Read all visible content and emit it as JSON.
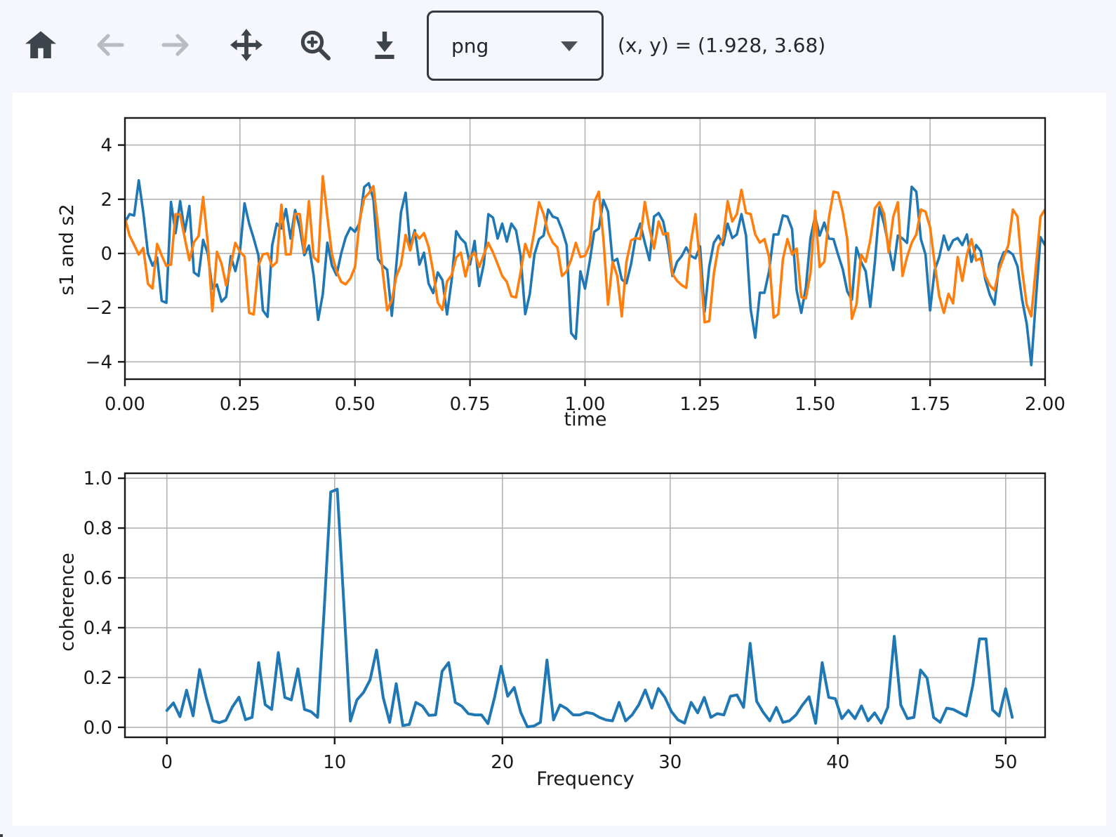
{
  "toolbar": {
    "buttons": [
      {
        "name": "home",
        "icon": "home-icon",
        "enabled": true
      },
      {
        "name": "back",
        "icon": "arrow-left-icon",
        "enabled": false
      },
      {
        "name": "forward",
        "icon": "arrow-right-icon",
        "enabled": false
      },
      {
        "name": "pan",
        "icon": "move-arrows-icon",
        "enabled": true
      },
      {
        "name": "zoom",
        "icon": "zoom-magnifier-icon",
        "enabled": true
      },
      {
        "name": "download",
        "icon": "download-icon",
        "enabled": true
      }
    ],
    "format_select": {
      "value": "png"
    },
    "cursor_readout": "(x, y) = (1.928, 3.68)"
  },
  "colors": {
    "page_background": "#f5f7fd",
    "figure_background": "#ffffff",
    "series_blue": "#1f77b4",
    "series_orange": "#ff7f0e",
    "grid": "#b3b3b3",
    "spine": "#1a1a1a",
    "icon_active": "#3e444c",
    "icon_disabled": "#b9bdc3"
  },
  "chart_data": [
    {
      "type": "line",
      "title": "",
      "xlabel": "time",
      "ylabel": "s1 and s2",
      "grid": true,
      "legend": "none",
      "xlim": [
        0,
        2
      ],
      "ylim": [
        -4.64,
        5.0
      ],
      "xticks": [
        0,
        0.25,
        0.5,
        0.75,
        1.0,
        1.25,
        1.5,
        1.75,
        2.0
      ],
      "xtick_labels": [
        "0.00",
        "0.25",
        "0.50",
        "0.75",
        "1.00",
        "1.25",
        "1.50",
        "1.75",
        "2.00"
      ],
      "yticks": [
        4,
        2,
        0,
        -2,
        -4
      ],
      "ytick_labels": [
        "4",
        "2",
        "0",
        "−2",
        "−4"
      ],
      "x_start": 0,
      "x_step": 0.01,
      "series": [
        {
          "name": "s1",
          "color": "#1f77b4",
          "values": [
            1.15,
            1.45,
            1.4,
            2.7,
            1.5,
            0.0,
            -0.45,
            -0.15,
            -1.75,
            -1.82,
            1.9,
            0.75,
            1.93,
            0.8,
            1.75,
            -0.7,
            -0.83,
            0.5,
            0.0,
            -1.3,
            -1.15,
            -1.78,
            -1.6,
            -0.1,
            -0.65,
            0.09,
            1.85,
            1.1,
            0.55,
            -0.06,
            -2.1,
            -2.34,
            0.3,
            1.1,
            0.92,
            1.64,
            0.55,
            1.6,
            0.95,
            -0.06,
            0.29,
            -0.8,
            -2.45,
            -1.5,
            0.4,
            -0.45,
            -0.8,
            0.0,
            0.6,
            0.95,
            0.8,
            1.12,
            2.45,
            2.59,
            2.0,
            -0.2,
            -0.45,
            -0.6,
            -2.3,
            -0.4,
            1.52,
            2.24,
            0.25,
            0.86,
            -0.41,
            0.03,
            -1.11,
            -1.46,
            -0.7,
            -0.98,
            -2.25,
            -1.0,
            0.82,
            0.55,
            0.38,
            -0.41,
            0.46,
            -1.2,
            -0.39,
            1.45,
            1.32,
            0.55,
            1.1,
            0.44,
            1.1,
            0.85,
            -0.09,
            -2.24,
            -1.5,
            -0.04,
            0.53,
            0.66,
            1.62,
            1.36,
            1.3,
            0.88,
            0.31,
            -2.94,
            -3.15,
            -0.66,
            -1.3,
            -0.3,
            0.8,
            0.92,
            1.97,
            1.54,
            -0.31,
            -0.2,
            -0.96,
            -1.1,
            -0.39,
            0.6,
            1.1,
            0.4,
            -0.25,
            1.36,
            1.49,
            1.18,
            0.35,
            -0.83,
            -0.31,
            -0.1,
            0.22,
            -0.09,
            -0.18,
            0.26,
            -2.15,
            -0.48,
            0.39,
            0.66,
            0.31,
            1.1,
            0.57,
            0.7,
            1.45,
            0.66,
            -2.06,
            -3.11,
            -1.45,
            -1.45,
            -0.66,
            0.7,
            0.7,
            1.4,
            1.36,
            0.9,
            -1.36,
            -2.19,
            -1.27,
            0.57,
            1.36,
            0.66,
            1.14,
            0.55,
            0.53,
            -0.04,
            -0.57,
            -1.4,
            -1.71,
            0.22,
            -0.31,
            -0.66,
            -1.97,
            -0.31,
            1.71,
            1.1,
            0.26,
            -0.61,
            0.66,
            0.55,
            0.39,
            2.46,
            2.28,
            0.53,
            -0.04,
            -2.1,
            -0.61,
            -0.13,
            0.66,
            0.13,
            0.48,
            0.57,
            0.31,
            0.7,
            -0.31,
            0.31,
            0.09,
            -0.96,
            -1.53,
            -1.89,
            -0.39,
            0.04,
            0.09,
            -0.04,
            -0.48,
            -1.7,
            -2.6,
            -4.12,
            -1.7,
            0.6,
            0.3
          ]
        },
        {
          "name": "s2",
          "color": "#ff7f0e",
          "values": [
            1.3,
            0.66,
            0.32,
            -0.04,
            0.2,
            -1.12,
            -1.29,
            0.35,
            -0.08,
            -0.46,
            -0.41,
            1.45,
            1.43,
            0.57,
            -0.25,
            0.41,
            0.64,
            2.08,
            0.39,
            -2.13,
            0.06,
            -0.38,
            -1.18,
            -0.44,
            0.39,
            0.06,
            -0.11,
            -2.19,
            -2.25,
            -0.46,
            -0.03,
            0.0,
            -0.48,
            -0.32,
            1.8,
            -0.04,
            -0.03,
            1.46,
            1.45,
            0.04,
            1.93,
            -0.13,
            -0.31,
            2.85,
            1.36,
            -0.04,
            -0.66,
            -1.05,
            -1.14,
            -0.92,
            -0.5,
            1.21,
            2.04,
            2.22,
            2.48,
            1.0,
            -0.63,
            -2.1,
            -1.73,
            -0.85,
            -0.41,
            0.68,
            0.11,
            0.77,
            0.55,
            0.75,
            0.25,
            -0.67,
            -1.81,
            -2.08,
            -1.03,
            -0.8,
            -0.15,
            0.03,
            -0.85,
            -0.15,
            0.03,
            -0.5,
            -0.04,
            0.39,
            0.04,
            -0.39,
            -0.83,
            -1.05,
            -1.58,
            -1.62,
            -0.7,
            0.35,
            -0.13,
            0.83,
            1.89,
            1.45,
            0.75,
            0.4,
            0.22,
            -0.83,
            -0.66,
            -0.22,
            0.39,
            -0.13,
            -0.09,
            0.31,
            1.89,
            2.28,
            0.53,
            -1.89,
            -0.31,
            -0.83,
            -2.32,
            -0.31,
            0.48,
            0.57,
            0.53,
            1.9,
            0.92,
            0.18,
            1.18,
            0.7,
            0.75,
            -0.75,
            -1.01,
            -1.17,
            -1.27,
            0.39,
            1.45,
            -0.39,
            -2.54,
            -2.5,
            -0.75,
            0.26,
            0.55,
            1.93,
            1.18,
            1.45,
            2.35,
            1.5,
            1.45,
            0.7,
            0.4,
            0.53,
            -0.13,
            -2.37,
            -2.24,
            -0.22,
            0.53,
            -0.04,
            0.18,
            -1.61,
            -1.66,
            -0.73,
            1.58,
            -0.5,
            -0.31,
            1.3,
            2.28,
            2.24,
            1.54,
            0.53,
            -2.41,
            -1.89,
            -0.04,
            -0.31,
            0.48,
            1.67,
            1.89,
            1.45,
            0.04,
            1.36,
            1.89,
            -0.83,
            -0.13,
            0.39,
            0.7,
            1.62,
            1.54,
            0.97,
            -0.39,
            -1.58,
            -2.19,
            -1.49,
            -1.84,
            -0.13,
            -1.01,
            -0.04,
            0.53,
            -0.26,
            -0.18,
            -0.83,
            -1.18,
            -1.36,
            -0.61,
            -0.13,
            0.31,
            1.62,
            1.36,
            -0.61,
            -1.89,
            -2.32,
            -0.5,
            1.36,
            1.62
          ]
        }
      ]
    },
    {
      "type": "line",
      "title": "",
      "xlabel": "Frequency",
      "ylabel": "coherence",
      "grid": true,
      "legend": "none",
      "xlim": [
        -2.5,
        52.35
      ],
      "ylim": [
        -0.04,
        1.02
      ],
      "xticks": [
        0,
        10,
        20,
        30,
        40,
        50
      ],
      "xtick_labels": [
        "0",
        "10",
        "20",
        "30",
        "40",
        "50"
      ],
      "yticks": [
        0,
        0.2,
        0.4,
        0.6,
        0.8,
        1.0
      ],
      "ytick_labels": [
        "0.0",
        "0.2",
        "0.4",
        "0.6",
        "0.8",
        "1.0"
      ],
      "x_start": 0,
      "x_step": 0.390625,
      "series": [
        {
          "name": "coherence",
          "color": "#1f77b4",
          "values": [
            0.068,
            0.098,
            0.043,
            0.149,
            0.046,
            0.232,
            0.119,
            0.026,
            0.019,
            0.028,
            0.082,
            0.121,
            0.031,
            0.04,
            0.26,
            0.091,
            0.072,
            0.3,
            0.12,
            0.11,
            0.235,
            0.072,
            0.063,
            0.04,
            0.47,
            0.945,
            0.956,
            0.5,
            0.025,
            0.11,
            0.14,
            0.19,
            0.31,
            0.12,
            0.02,
            0.175,
            0.007,
            0.012,
            0.1,
            0.085,
            0.048,
            0.05,
            0.225,
            0.26,
            0.1,
            0.085,
            0.055,
            0.05,
            0.05,
            0.015,
            0.12,
            0.245,
            0.125,
            0.16,
            0.06,
            0.002,
            0.005,
            0.02,
            0.27,
            0.03,
            0.09,
            0.075,
            0.05,
            0.05,
            0.06,
            0.055,
            0.04,
            0.03,
            0.026,
            0.1,
            0.026,
            0.05,
            0.09,
            0.15,
            0.077,
            0.156,
            0.12,
            0.063,
            0.03,
            0.017,
            0.1,
            0.058,
            0.12,
            0.04,
            0.055,
            0.05,
            0.125,
            0.13,
            0.08,
            0.337,
            0.105,
            0.06,
            0.026,
            0.08,
            0.02,
            0.026,
            0.05,
            0.09,
            0.123,
            0.016,
            0.26,
            0.12,
            0.115,
            0.035,
            0.068,
            0.035,
            0.086,
            0.026,
            0.058,
            0.017,
            0.08,
            0.365,
            0.09,
            0.035,
            0.04,
            0.23,
            0.198,
            0.04,
            0.02,
            0.077,
            0.072,
            0.058,
            0.045,
            0.17,
            0.355,
            0.355,
            0.07,
            0.045,
            0.155,
            0.04
          ]
        }
      ]
    }
  ]
}
